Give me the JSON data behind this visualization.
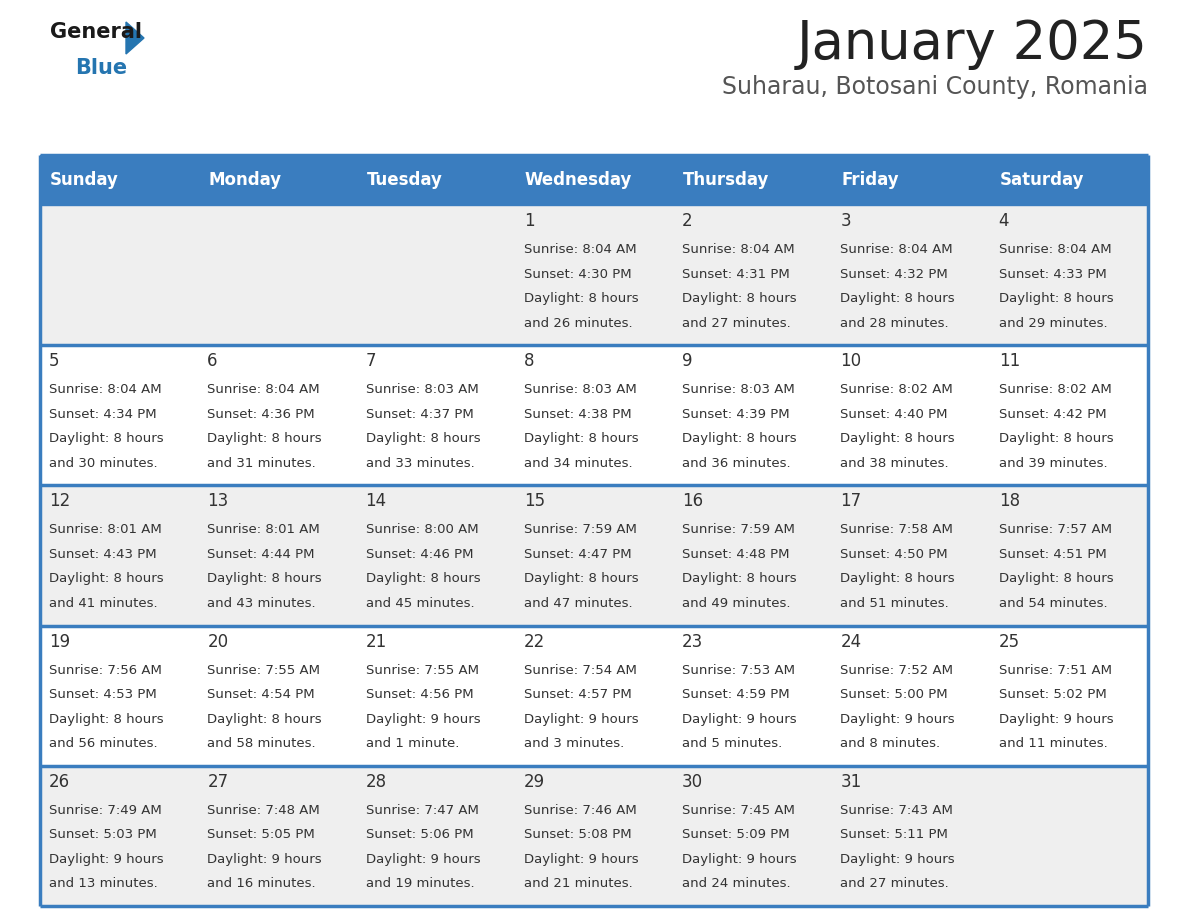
{
  "title": "January 2025",
  "subtitle": "Suharau, Botosani County, Romania",
  "days_of_week": [
    "Sunday",
    "Monday",
    "Tuesday",
    "Wednesday",
    "Thursday",
    "Friday",
    "Saturday"
  ],
  "header_bg": "#3a7dbf",
  "header_text": "#ffffff",
  "cell_bg_light": "#efefef",
  "cell_bg_white": "#ffffff",
  "border_color": "#3a7dbf",
  "text_color": "#333333",
  "title_color": "#222222",
  "subtitle_color": "#555555",
  "weeks": [
    [
      {
        "day": null,
        "sunrise": null,
        "sunset": null,
        "daylight": null
      },
      {
        "day": null,
        "sunrise": null,
        "sunset": null,
        "daylight": null
      },
      {
        "day": null,
        "sunrise": null,
        "sunset": null,
        "daylight": null
      },
      {
        "day": 1,
        "sunrise": "8:04 AM",
        "sunset": "4:30 PM",
        "daylight": "8 hours and 26 minutes."
      },
      {
        "day": 2,
        "sunrise": "8:04 AM",
        "sunset": "4:31 PM",
        "daylight": "8 hours and 27 minutes."
      },
      {
        "day": 3,
        "sunrise": "8:04 AM",
        "sunset": "4:32 PM",
        "daylight": "8 hours and 28 minutes."
      },
      {
        "day": 4,
        "sunrise": "8:04 AM",
        "sunset": "4:33 PM",
        "daylight": "8 hours and 29 minutes."
      }
    ],
    [
      {
        "day": 5,
        "sunrise": "8:04 AM",
        "sunset": "4:34 PM",
        "daylight": "8 hours and 30 minutes."
      },
      {
        "day": 6,
        "sunrise": "8:04 AM",
        "sunset": "4:36 PM",
        "daylight": "8 hours and 31 minutes."
      },
      {
        "day": 7,
        "sunrise": "8:03 AM",
        "sunset": "4:37 PM",
        "daylight": "8 hours and 33 minutes."
      },
      {
        "day": 8,
        "sunrise": "8:03 AM",
        "sunset": "4:38 PM",
        "daylight": "8 hours and 34 minutes."
      },
      {
        "day": 9,
        "sunrise": "8:03 AM",
        "sunset": "4:39 PM",
        "daylight": "8 hours and 36 minutes."
      },
      {
        "day": 10,
        "sunrise": "8:02 AM",
        "sunset": "4:40 PM",
        "daylight": "8 hours and 38 minutes."
      },
      {
        "day": 11,
        "sunrise": "8:02 AM",
        "sunset": "4:42 PM",
        "daylight": "8 hours and 39 minutes."
      }
    ],
    [
      {
        "day": 12,
        "sunrise": "8:01 AM",
        "sunset": "4:43 PM",
        "daylight": "8 hours and 41 minutes."
      },
      {
        "day": 13,
        "sunrise": "8:01 AM",
        "sunset": "4:44 PM",
        "daylight": "8 hours and 43 minutes."
      },
      {
        "day": 14,
        "sunrise": "8:00 AM",
        "sunset": "4:46 PM",
        "daylight": "8 hours and 45 minutes."
      },
      {
        "day": 15,
        "sunrise": "7:59 AM",
        "sunset": "4:47 PM",
        "daylight": "8 hours and 47 minutes."
      },
      {
        "day": 16,
        "sunrise": "7:59 AM",
        "sunset": "4:48 PM",
        "daylight": "8 hours and 49 minutes."
      },
      {
        "day": 17,
        "sunrise": "7:58 AM",
        "sunset": "4:50 PM",
        "daylight": "8 hours and 51 minutes."
      },
      {
        "day": 18,
        "sunrise": "7:57 AM",
        "sunset": "4:51 PM",
        "daylight": "8 hours and 54 minutes."
      }
    ],
    [
      {
        "day": 19,
        "sunrise": "7:56 AM",
        "sunset": "4:53 PM",
        "daylight": "8 hours and 56 minutes."
      },
      {
        "day": 20,
        "sunrise": "7:55 AM",
        "sunset": "4:54 PM",
        "daylight": "8 hours and 58 minutes."
      },
      {
        "day": 21,
        "sunrise": "7:55 AM",
        "sunset": "4:56 PM",
        "daylight": "9 hours and 1 minute."
      },
      {
        "day": 22,
        "sunrise": "7:54 AM",
        "sunset": "4:57 PM",
        "daylight": "9 hours and 3 minutes."
      },
      {
        "day": 23,
        "sunrise": "7:53 AM",
        "sunset": "4:59 PM",
        "daylight": "9 hours and 5 minutes."
      },
      {
        "day": 24,
        "sunrise": "7:52 AM",
        "sunset": "5:00 PM",
        "daylight": "9 hours and 8 minutes."
      },
      {
        "day": 25,
        "sunrise": "7:51 AM",
        "sunset": "5:02 PM",
        "daylight": "9 hours and 11 minutes."
      }
    ],
    [
      {
        "day": 26,
        "sunrise": "7:49 AM",
        "sunset": "5:03 PM",
        "daylight": "9 hours and 13 minutes."
      },
      {
        "day": 27,
        "sunrise": "7:48 AM",
        "sunset": "5:05 PM",
        "daylight": "9 hours and 16 minutes."
      },
      {
        "day": 28,
        "sunrise": "7:47 AM",
        "sunset": "5:06 PM",
        "daylight": "9 hours and 19 minutes."
      },
      {
        "day": 29,
        "sunrise": "7:46 AM",
        "sunset": "5:08 PM",
        "daylight": "9 hours and 21 minutes."
      },
      {
        "day": 30,
        "sunrise": "7:45 AM",
        "sunset": "5:09 PM",
        "daylight": "9 hours and 24 minutes."
      },
      {
        "day": 31,
        "sunrise": "7:43 AM",
        "sunset": "5:11 PM",
        "daylight": "9 hours and 27 minutes."
      },
      {
        "day": null,
        "sunrise": null,
        "sunset": null,
        "daylight": null
      }
    ]
  ]
}
